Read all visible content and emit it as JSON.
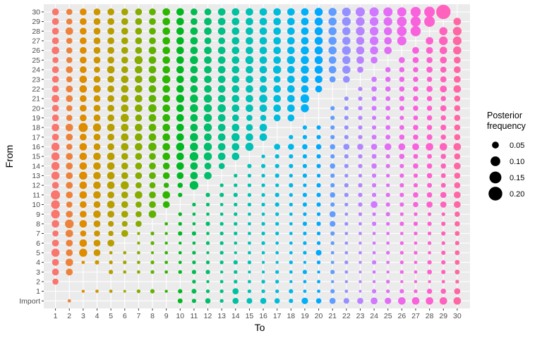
{
  "chart_data": {
    "type": "scatter",
    "subtype": "bubble-matrix",
    "xlabel": "To",
    "ylabel": "From",
    "x_categories": [
      "1",
      "2",
      "3",
      "4",
      "5",
      "6",
      "7",
      "8",
      "9",
      "10",
      "11",
      "12",
      "13",
      "14",
      "15",
      "16",
      "17",
      "18",
      "19",
      "20",
      "21",
      "22",
      "23",
      "24",
      "25",
      "26",
      "27",
      "28",
      "29",
      "30"
    ],
    "y_categories": [
      "Import",
      "1",
      "2",
      "3",
      "4",
      "5",
      "6",
      "7",
      "8",
      "9",
      "10",
      "11",
      "12",
      "13",
      "14",
      "15",
      "16",
      "17",
      "18",
      "19",
      "20",
      "21",
      "22",
      "23",
      "24",
      "25",
      "26",
      "27",
      "28",
      "29",
      "30"
    ],
    "grid": true,
    "background": "#ebebeb",
    "color_by": "To",
    "colors": [
      "#F8766D",
      "#EC823C",
      "#DE8C00",
      "#CD9600",
      "#B89E00",
      "#A3A500",
      "#86AC00",
      "#60B200",
      "#2DB600",
      "#00B81F",
      "#00BB4E",
      "#00BE6C",
      "#00C086",
      "#00C19F",
      "#00C1B5",
      "#00BFCA",
      "#00BCDC",
      "#00B7EA",
      "#00B0F6",
      "#00A8FF",
      "#619CFF",
      "#9590FF",
      "#B883FF",
      "#D078FF",
      "#E36EF6",
      "#EF67EB",
      "#F962DD",
      "#FE61CF",
      "#FF62BC",
      "#FF67A4"
    ],
    "legend": {
      "title": "Posterior\nfrequency",
      "position": "right",
      "entries": [
        {
          "label": "0.05",
          "value": 0.05
        },
        {
          "label": "0.10",
          "value": 0.1
        },
        {
          "label": "0.15",
          "value": 0.15
        },
        {
          "label": "0.20",
          "value": 0.2
        }
      ]
    },
    "values_by_from": {
      "Import": [
        0.0,
        0.012,
        0.0,
        0.0,
        0.0,
        0.0,
        0.0,
        0.0,
        0.0,
        0.025,
        0.02,
        0.03,
        0.015,
        0.04,
        0.035,
        0.04,
        0.03,
        0.02,
        0.045,
        0.03,
        0.04,
        0.035,
        0.04,
        0.05,
        0.045,
        0.06,
        0.06,
        0.06,
        0.06,
        0.06
      ],
      "1": [
        0.0,
        0.0,
        0.01,
        0.012,
        0.012,
        0.008,
        0.015,
        0.02,
        0.01,
        0.02,
        0.025,
        0.015,
        0.015,
        0.04,
        0.015,
        0.015,
        0.015,
        0.02,
        0.012,
        0.012,
        0.02,
        0.012,
        0.008,
        0.02,
        0.015,
        0.02,
        0.015,
        0.03,
        0.03,
        0.04
      ],
      "2": [
        0.04,
        0.0,
        0.0,
        0.0,
        0.0,
        0.0,
        0.0,
        0.0,
        0.0,
        0.0,
        0.015,
        0.01,
        0.012,
        0.015,
        0.012,
        0.015,
        0.015,
        0.01,
        0.012,
        0.012,
        0.01,
        0.01,
        0.01,
        0.01,
        0.015,
        0.01,
        0.01,
        0.01,
        0.012,
        0.015
      ],
      "3": [
        0.05,
        0.05,
        0.0,
        0.0,
        0.02,
        0.012,
        0.012,
        0.015,
        0.012,
        0.015,
        0.02,
        0.02,
        0.01,
        0.015,
        0.01,
        0.01,
        0.015,
        0.012,
        0.02,
        0.01,
        0.02,
        0.012,
        0.008,
        0.012,
        0.01,
        0.015,
        0.012,
        0.025,
        0.02,
        0.025
      ],
      "4": [
        0.05,
        0.06,
        0.012,
        0.02,
        0.015,
        0.015,
        0.012,
        0.015,
        0.012,
        0.012,
        0.015,
        0.015,
        0.015,
        0.02,
        0.015,
        0.01,
        0.01,
        0.015,
        0.01,
        0.015,
        0.012,
        0.015,
        0.01,
        0.02,
        0.012,
        0.015,
        0.012,
        0.02,
        0.02,
        0.025
      ],
      "5": [
        0.07,
        0.05,
        0.07,
        0.05,
        0.012,
        0.012,
        0.012,
        0.01,
        0.012,
        0.012,
        0.015,
        0.01,
        0.015,
        0.01,
        0.012,
        0.012,
        0.012,
        0.012,
        0.015,
        0.035,
        0.012,
        0.012,
        0.012,
        0.012,
        0.015,
        0.015,
        0.015,
        0.012,
        0.02,
        0.025
      ],
      "6": [
        0.05,
        0.05,
        0.06,
        0.05,
        0.05,
        0.0,
        0.01,
        0.015,
        0.01,
        0.01,
        0.012,
        0.015,
        0.015,
        0.012,
        0.012,
        0.015,
        0.012,
        0.012,
        0.015,
        0.015,
        0.015,
        0.012,
        0.01,
        0.012,
        0.012,
        0.015,
        0.012,
        0.015,
        0.015,
        0.02
      ],
      "7": [
        0.04,
        0.06,
        0.04,
        0.04,
        0.03,
        0.05,
        0.01,
        0.015,
        0.01,
        0.02,
        0.02,
        0.012,
        0.015,
        0.015,
        0.012,
        0.015,
        0.015,
        0.012,
        0.015,
        0.015,
        0.02,
        0.012,
        0.012,
        0.012,
        0.012,
        0.012,
        0.015,
        0.015,
        0.02,
        0.025
      ],
      "8": [
        0.06,
        0.08,
        0.06,
        0.05,
        0.035,
        0.035,
        0.04,
        0.0,
        0.012,
        0.015,
        0.012,
        0.02,
        0.015,
        0.015,
        0.012,
        0.015,
        0.015,
        0.012,
        0.02,
        0.02,
        0.035,
        0.015,
        0.012,
        0.02,
        0.015,
        0.02,
        0.02,
        0.02,
        0.02,
        0.03
      ],
      "9": [
        0.08,
        0.05,
        0.05,
        0.06,
        0.05,
        0.05,
        0.04,
        0.06,
        0.0,
        0.015,
        0.012,
        0.012,
        0.012,
        0.015,
        0.012,
        0.012,
        0.015,
        0.012,
        0.015,
        0.015,
        0.04,
        0.012,
        0.015,
        0.015,
        0.02,
        0.015,
        0.015,
        0.015,
        0.015,
        0.03
      ],
      "10": [
        0.08,
        0.04,
        0.05,
        0.05,
        0.06,
        0.05,
        0.04,
        0.05,
        0.05,
        0.0,
        0.015,
        0.015,
        0.012,
        0.015,
        0.015,
        0.015,
        0.02,
        0.015,
        0.02,
        0.02,
        0.02,
        0.015,
        0.02,
        0.05,
        0.02,
        0.02,
        0.03,
        0.04,
        0.04,
        0.05
      ],
      "11": [
        0.09,
        0.05,
        0.06,
        0.06,
        0.05,
        0.05,
        0.06,
        0.05,
        0.06,
        0.02,
        0.0,
        0.02,
        0.02,
        0.02,
        0.015,
        0.015,
        0.02,
        0.015,
        0.02,
        0.02,
        0.03,
        0.02,
        0.02,
        0.02,
        0.02,
        0.02,
        0.03,
        0.03,
        0.04,
        0.05
      ],
      "12": [
        0.05,
        0.05,
        0.06,
        0.06,
        0.06,
        0.07,
        0.04,
        0.04,
        0.03,
        0.03,
        0.08,
        0.0,
        0.015,
        0.015,
        0.015,
        0.015,
        0.015,
        0.02,
        0.015,
        0.02,
        0.02,
        0.02,
        0.02,
        0.02,
        0.015,
        0.02,
        0.02,
        0.025,
        0.025,
        0.04
      ],
      "13": [
        0.07,
        0.05,
        0.07,
        0.06,
        0.06,
        0.05,
        0.05,
        0.05,
        0.05,
        0.05,
        0.06,
        0.06,
        0.0,
        0.015,
        0.015,
        0.015,
        0.02,
        0.015,
        0.02,
        0.015,
        0.02,
        0.015,
        0.015,
        0.02,
        0.015,
        0.02,
        0.02,
        0.03,
        0.025,
        0.04
      ],
      "14": [
        0.07,
        0.05,
        0.06,
        0.06,
        0.06,
        0.05,
        0.05,
        0.05,
        0.05,
        0.06,
        0.06,
        0.05,
        0.04,
        0.0,
        0.02,
        0.02,
        0.02,
        0.02,
        0.02,
        0.02,
        0.03,
        0.02,
        0.02,
        0.03,
        0.02,
        0.02,
        0.03,
        0.03,
        0.03,
        0.05
      ],
      "15": [
        0.07,
        0.05,
        0.06,
        0.06,
        0.06,
        0.05,
        0.05,
        0.05,
        0.06,
        0.06,
        0.08,
        0.07,
        0.06,
        0.06,
        0.0,
        0.015,
        0.02,
        0.02,
        0.02,
        0.02,
        0.02,
        0.02,
        0.02,
        0.025,
        0.02,
        0.03,
        0.025,
        0.025,
        0.03,
        0.04
      ],
      "16": [
        0.07,
        0.04,
        0.06,
        0.05,
        0.05,
        0.06,
        0.06,
        0.07,
        0.06,
        0.07,
        0.07,
        0.07,
        0.06,
        0.06,
        0.07,
        0.0,
        0.04,
        0.04,
        0.03,
        0.03,
        0.03,
        0.04,
        0.04,
        0.04,
        0.05,
        0.05,
        0.05,
        0.06,
        0.06,
        0.06
      ],
      "17": [
        0.05,
        0.05,
        0.05,
        0.05,
        0.05,
        0.06,
        0.06,
        0.06,
        0.06,
        0.06,
        0.07,
        0.06,
        0.06,
        0.07,
        0.06,
        0.06,
        0.0,
        0.02,
        0.02,
        0.02,
        0.02,
        0.02,
        0.02,
        0.025,
        0.025,
        0.03,
        0.03,
        0.035,
        0.03,
        0.04
      ],
      "18": [
        0.06,
        0.06,
        0.09,
        0.07,
        0.06,
        0.06,
        0.06,
        0.06,
        0.06,
        0.06,
        0.06,
        0.07,
        0.06,
        0.06,
        0.05,
        0.06,
        0.0,
        0.0,
        0.02,
        0.02,
        0.02,
        0.02,
        0.02,
        0.02,
        0.025,
        0.025,
        0.03,
        0.03,
        0.035,
        0.04
      ],
      "19": [
        0.05,
        0.04,
        0.05,
        0.05,
        0.05,
        0.07,
        0.05,
        0.06,
        0.06,
        0.06,
        0.06,
        0.07,
        0.06,
        0.05,
        0.04,
        0.04,
        0.05,
        0.05,
        0.0,
        0.0,
        0.02,
        0.02,
        0.02,
        0.02,
        0.02,
        0.02,
        0.025,
        0.03,
        0.03,
        0.04
      ],
      "20": [
        0.05,
        0.04,
        0.05,
        0.05,
        0.05,
        0.06,
        0.06,
        0.07,
        0.06,
        0.06,
        0.07,
        0.07,
        0.07,
        0.06,
        0.06,
        0.06,
        0.06,
        0.06,
        0.07,
        0.0,
        0.02,
        0.02,
        0.02,
        0.025,
        0.025,
        0.025,
        0.03,
        0.03,
        0.04,
        0.04
      ],
      "21": [
        0.06,
        0.05,
        0.05,
        0.05,
        0.05,
        0.06,
        0.06,
        0.06,
        0.06,
        0.07,
        0.07,
        0.07,
        0.06,
        0.06,
        0.06,
        0.07,
        0.06,
        0.06,
        0.08,
        0.0,
        0.0,
        0.02,
        0.02,
        0.025,
        0.025,
        0.03,
        0.03,
        0.03,
        0.03,
        0.04
      ],
      "22": [
        0.05,
        0.05,
        0.06,
        0.06,
        0.05,
        0.06,
        0.06,
        0.06,
        0.06,
        0.06,
        0.06,
        0.06,
        0.06,
        0.06,
        0.06,
        0.06,
        0.06,
        0.06,
        0.06,
        0.05,
        0.0,
        0.0,
        0.02,
        0.03,
        0.03,
        0.03,
        0.03,
        0.04,
        0.05,
        0.06
      ],
      "23": [
        0.05,
        0.04,
        0.06,
        0.05,
        0.05,
        0.06,
        0.06,
        0.06,
        0.07,
        0.06,
        0.06,
        0.06,
        0.06,
        0.06,
        0.06,
        0.05,
        0.05,
        0.06,
        0.06,
        0.06,
        0.04,
        0.05,
        0.0,
        0.03,
        0.03,
        0.03,
        0.03,
        0.03,
        0.04,
        0.05
      ],
      "24": [
        0.05,
        0.05,
        0.05,
        0.04,
        0.06,
        0.05,
        0.06,
        0.06,
        0.06,
        0.06,
        0.06,
        0.06,
        0.06,
        0.06,
        0.06,
        0.06,
        0.07,
        0.06,
        0.07,
        0.07,
        0.06,
        0.07,
        0.04,
        0.0,
        0.03,
        0.03,
        0.03,
        0.04,
        0.04,
        0.05
      ],
      "25": [
        0.04,
        0.04,
        0.05,
        0.05,
        0.05,
        0.05,
        0.07,
        0.06,
        0.06,
        0.06,
        0.07,
        0.06,
        0.06,
        0.06,
        0.07,
        0.06,
        0.06,
        0.07,
        0.07,
        0.07,
        0.06,
        0.07,
        0.06,
        0.05,
        0.0,
        0.04,
        0.04,
        0.04,
        0.05,
        0.05
      ],
      "26": [
        0.06,
        0.04,
        0.05,
        0.05,
        0.05,
        0.05,
        0.05,
        0.06,
        0.06,
        0.06,
        0.06,
        0.06,
        0.06,
        0.06,
        0.06,
        0.06,
        0.06,
        0.06,
        0.07,
        0.07,
        0.07,
        0.08,
        0.07,
        0.07,
        0.06,
        0.0,
        0.05,
        0.05,
        0.06,
        0.07
      ],
      "27": [
        0.05,
        0.04,
        0.05,
        0.05,
        0.05,
        0.05,
        0.05,
        0.05,
        0.06,
        0.06,
        0.06,
        0.05,
        0.05,
        0.06,
        0.06,
        0.06,
        0.06,
        0.06,
        0.06,
        0.07,
        0.07,
        0.07,
        0.07,
        0.08,
        0.06,
        0.09,
        0.0,
        0.06,
        0.08,
        0.08
      ],
      "28": [
        0.05,
        0.06,
        0.05,
        0.05,
        0.05,
        0.05,
        0.05,
        0.05,
        0.06,
        0.06,
        0.06,
        0.06,
        0.06,
        0.06,
        0.06,
        0.06,
        0.06,
        0.06,
        0.06,
        0.07,
        0.07,
        0.07,
        0.08,
        0.08,
        0.07,
        0.1,
        0.11,
        0.0,
        0.07,
        0.08
      ],
      "29": [
        0.05,
        0.04,
        0.05,
        0.05,
        0.05,
        0.05,
        0.05,
        0.05,
        0.06,
        0.06,
        0.05,
        0.06,
        0.06,
        0.06,
        0.06,
        0.06,
        0.06,
        0.06,
        0.06,
        0.07,
        0.07,
        0.08,
        0.08,
        0.08,
        0.08,
        0.1,
        0.11,
        0.12,
        0.0,
        0.06
      ],
      "30": [
        0.05,
        0.04,
        0.05,
        0.05,
        0.05,
        0.05,
        0.05,
        0.05,
        0.06,
        0.06,
        0.05,
        0.05,
        0.06,
        0.06,
        0.06,
        0.06,
        0.06,
        0.06,
        0.06,
        0.07,
        0.07,
        0.08,
        0.09,
        0.09,
        0.09,
        0.09,
        0.11,
        0.12,
        0.22,
        0.0
      ]
    }
  }
}
